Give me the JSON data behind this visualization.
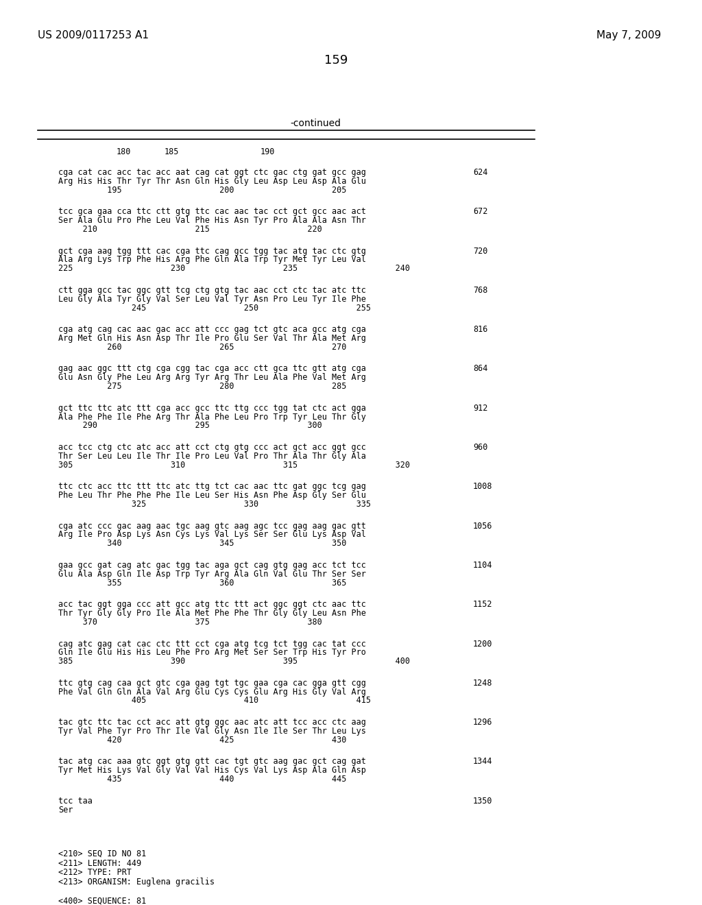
{
  "header_left": "US 2009/0117253 A1",
  "header_right": "May 7, 2009",
  "page_number": "159",
  "continued_label": "-continued",
  "background_color": "#ffffff",
  "text_color": "#000000",
  "ruler_numbers": [
    "180",
    "185",
    "190"
  ],
  "blocks": [
    {
      "dna": "cga cat cac acc tac acc aat cag cat ggt ctc gac ctg gat gcc gag",
      "aa": "Arg His His Thr Tyr Thr Asn Gln His Gly Leu Asp Leu Asp Ala Glu",
      "nums": "          195                    200                    205",
      "num_right": "624"
    },
    {
      "dna": "tcc gca gaa cca ttc ctt gtg ttc cac aac tac cct gct gcc aac act",
      "aa": "Ser Ala Glu Pro Phe Leu Val Phe His Asn Tyr Pro Ala Ala Asn Thr",
      "nums": "     210                    215                    220",
      "num_right": "672"
    },
    {
      "dna": "gct cga aag tgg ttt cac cga ttc cag gcc tgg tac atg tac ctc gtg",
      "aa": "Ala Arg Lys Trp Phe His Arg Phe Gln Ala Trp Tyr Met Tyr Leu Val",
      "nums": "225                    230                    235                    240",
      "num_right": "720"
    },
    {
      "dna": "ctt gga gcc tac ggc gtt tcg ctg gtg tac aac cct ctc tac atc ttc",
      "aa": "Leu Gly Ala Tyr Gly Val Ser Leu Val Tyr Asn Pro Leu Tyr Ile Phe",
      "nums": "               245                    250                    255",
      "num_right": "768"
    },
    {
      "dna": "cga atg cag cac aac gac acc att ccc gag tct gtc aca gcc atg cga",
      "aa": "Arg Met Gln His Asn Asp Thr Ile Pro Glu Ser Val Thr Ala Met Arg",
      "nums": "          260                    265                    270",
      "num_right": "816"
    },
    {
      "dna": "gag aac ggc ttt ctg cga cgg tac cga acc ctt gca ttc gtt atg cga",
      "aa": "Glu Asn Gly Phe Leu Arg Arg Tyr Arg Thr Leu Ala Phe Val Met Arg",
      "nums": "          275                    280                    285",
      "num_right": "864"
    },
    {
      "dna": "gct ttc ttc atc ttt cga acc gcc ttc ttg ccc tgg tat ctc act gga",
      "aa": "Ala Phe Phe Ile Phe Arg Thr Ala Phe Leu Pro Trp Tyr Leu Thr Gly",
      "nums": "     290                    295                    300",
      "num_right": "912"
    },
    {
      "dna": "acc tcc ctg ctc atc acc att cct ctg gtg ccc act gct acc ggt gcc",
      "aa": "Thr Ser Leu Leu Ile Thr Ile Pro Leu Val Pro Thr Ala Thr Gly Ala",
      "nums": "305                    310                    315                    320",
      "num_right": "960"
    },
    {
      "dna": "ttc ctc acc ttc ttt ttc atc ttg tct cac aac ttc gat ggc tcg gag",
      "aa": "Phe Leu Thr Phe Phe Phe Ile Leu Ser His Asn Phe Asp Gly Ser Glu",
      "nums": "               325                    330                    335",
      "num_right": "1008"
    },
    {
      "dna": "cga atc ccc gac aag aac tgc aag gtc aag agc tcc gag aag gac gtt",
      "aa": "Arg Ile Pro Asp Lys Asn Cys Lys Val Lys Ser Ser Glu Lys Asp Val",
      "nums": "          340                    345                    350",
      "num_right": "1056"
    },
    {
      "dna": "gaa gcc gat cag atc gac tgg tac aga gct cag gtg gag acc tct tcc",
      "aa": "Glu Ala Asp Gln Ile Asp Trp Tyr Arg Ala Gln Val Glu Thr Ser Ser",
      "nums": "          355                    360                    365",
      "num_right": "1104"
    },
    {
      "dna": "acc tac ggt gga ccc att gcc atg ttc ttt act ggc ggt ctc aac ttc",
      "aa": "Thr Tyr Gly Gly Pro Ile Ala Met Phe Phe Thr Gly Gly Leu Asn Phe",
      "nums": "     370                    375                    380",
      "num_right": "1152"
    },
    {
      "dna": "cag atc gag cat cac ctc ttt cct cga atg tcg tct tgg cac tat ccc",
      "aa": "Gln Ile Glu His His Leu Phe Pro Arg Met Ser Ser Trp His Tyr Pro",
      "nums": "385                    390                    395                    400",
      "num_right": "1200"
    },
    {
      "dna": "ttc gtg cag caa gct gtc cga gag tgt tgc gaa cga cac gga gtt cgg",
      "aa": "Phe Val Gln Gln Ala Val Arg Glu Cys Cys Glu Arg His Gly Val Arg",
      "nums": "               405                    410                    415",
      "num_right": "1248"
    },
    {
      "dna": "tac gtc ttc tac cct acc att gtg ggc aac atc att tcc acc ctc aag",
      "aa": "Tyr Val Phe Tyr Pro Thr Ile Val Gly Asn Ile Ile Ser Thr Leu Lys",
      "nums": "          420                    425                    430",
      "num_right": "1296"
    },
    {
      "dna": "tac atg cac aaa gtc ggt gtg gtt cac tgt gtc aag gac gct cag gat",
      "aa": "Tyr Met His Lys Val Gly Val Val His Cys Val Lys Asp Ala Gln Asp",
      "nums": "          435                    440                    445",
      "num_right": "1344"
    },
    {
      "dna": "tcc taa",
      "aa": "Ser",
      "nums": "",
      "num_right": "1350"
    }
  ],
  "footer_lines": [
    "<210> SEQ ID NO 81",
    "<211> LENGTH: 449",
    "<212> TYPE: PRT",
    "<213> ORGANISM: Euglena gracilis",
    "",
    "<400> SEQUENCE: 81"
  ]
}
